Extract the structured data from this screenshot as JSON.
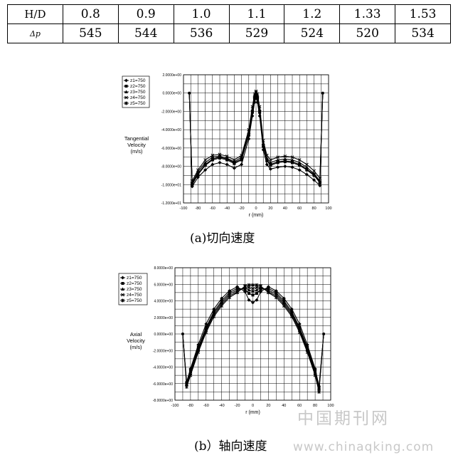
{
  "table": {
    "row1_header": "H/D",
    "row2_header": "Δp",
    "columns": [
      "0.8",
      "0.9",
      "1.0",
      "1.1",
      "1.2",
      "1.33",
      "1.53"
    ],
    "values": [
      "545",
      "544",
      "536",
      "529",
      "524",
      "520",
      "534"
    ]
  },
  "chart_data": [
    {
      "type": "line",
      "ylabel_lines": [
        "Tangential",
        "Velocity",
        "(m/s)"
      ],
      "xlabel": "r (mm)",
      "xlim": [
        -100,
        100
      ],
      "ylim": [
        -12,
        2
      ],
      "x_ticks": [
        "-100",
        "-80",
        "-60",
        "-40",
        "-20",
        "0",
        "20",
        "40",
        "60",
        "80",
        "100"
      ],
      "y_ticks": [
        "2.0000e+00",
        "0.0000e+00",
        "-2.0000e+00",
        "-4.0000e+00",
        "-6.0000e+00",
        "-8.0000e+00",
        "-1.0000e+01",
        "-1.2000e+01"
      ],
      "grid": true,
      "legend_position": "top-left",
      "legend": [
        "z1=750",
        "z2=750",
        "z3=750",
        "z4=750",
        "z5=750"
      ],
      "x": [
        -88,
        -80,
        -70,
        -60,
        -50,
        -40,
        -30,
        -20,
        -10,
        -5,
        -2,
        0,
        2,
        5,
        10,
        15,
        20,
        30,
        40,
        50,
        60,
        70,
        80,
        88
      ],
      "series": [
        {
          "name": "z1=750",
          "values": [
            -10.2,
            -9.2,
            -8.4,
            -7.8,
            -7.6,
            -7.8,
            -8.2,
            -7.8,
            -5.0,
            -2.5,
            -1.0,
            -0.2,
            -1.0,
            -2.5,
            -6.2,
            -7.8,
            -8.3,
            -8.1,
            -8.0,
            -8.1,
            -8.4,
            -8.9,
            -9.5,
            -10.1
          ]
        },
        {
          "name": "z2=750",
          "values": [
            -10.0,
            -8.9,
            -7.9,
            -7.3,
            -7.1,
            -7.3,
            -7.7,
            -7.3,
            -4.6,
            -2.1,
            -0.6,
            0.1,
            -0.6,
            -2.1,
            -5.8,
            -7.4,
            -7.9,
            -7.6,
            -7.5,
            -7.6,
            -7.9,
            -8.4,
            -9.0,
            -9.8
          ]
        },
        {
          "name": "z3=750",
          "values": [
            -9.8,
            -8.6,
            -7.6,
            -7.0,
            -6.9,
            -7.1,
            -7.5,
            -7.0,
            -4.3,
            -1.8,
            -0.3,
            0.0,
            -0.3,
            -1.8,
            -5.5,
            -7.1,
            -7.6,
            -7.3,
            -7.2,
            -7.3,
            -7.6,
            -8.1,
            -8.8,
            -9.6
          ]
        },
        {
          "name": "z4=750",
          "values": [
            -9.6,
            -8.4,
            -7.3,
            -6.8,
            -6.7,
            -6.9,
            -7.3,
            -6.8,
            -4.0,
            -1.5,
            -0.1,
            0.2,
            -0.1,
            -1.5,
            -5.2,
            -6.8,
            -7.3,
            -7.0,
            -6.9,
            -7.0,
            -7.3,
            -7.8,
            -8.5,
            -9.3
          ]
        },
        {
          "name": "z5=750",
          "values": [
            -9.9,
            -8.8,
            -7.8,
            -7.2,
            -7.0,
            -7.2,
            -7.6,
            -7.2,
            -4.5,
            -2.0,
            -0.5,
            0.0,
            -0.5,
            -2.0,
            -5.7,
            -7.3,
            -7.8,
            -7.5,
            -7.4,
            -7.5,
            -7.8,
            -8.3,
            -8.9,
            -9.7
          ]
        }
      ],
      "end_points": {
        "x": [
          -92,
          92
        ],
        "y": [
          0,
          0
        ]
      }
    },
    {
      "type": "line",
      "ylabel_lines": [
        "Axial",
        "Velocity",
        "(m/s)"
      ],
      "xlabel": "r (mm)",
      "xlim": [
        -100,
        100
      ],
      "ylim": [
        -8,
        8
      ],
      "x_ticks": [
        "-100",
        "-80",
        "-60",
        "-40",
        "-20",
        "0",
        "20",
        "40",
        "60",
        "80",
        "100"
      ],
      "y_ticks": [
        "8.0000e+00",
        "6.0000e+00",
        "4.0000e+00",
        "2.0000e+00",
        "0.0000e+00",
        "-2.0000e+00",
        "-4.0000e+00",
        "-6.0000e+00",
        "-8.0000e+00"
      ],
      "grid": true,
      "legend_position": "top-left",
      "legend": [
        "z1=750",
        "z2=750",
        "z3=750",
        "z4=750",
        "z5=750"
      ],
      "x": [
        -85,
        -80,
        -70,
        -60,
        -50,
        -40,
        -30,
        -20,
        -10,
        -5,
        0,
        5,
        10,
        20,
        30,
        40,
        50,
        60,
        70,
        80,
        85
      ],
      "series": [
        {
          "name": "z1=750",
          "values": [
            -5.8,
            -4.2,
            -1.3,
            1.2,
            3.0,
            4.3,
            5.2,
            5.7,
            5.1,
            4.1,
            3.8,
            4.1,
            5.1,
            5.7,
            5.2,
            4.3,
            3.0,
            1.2,
            -1.3,
            -4.2,
            -6.3
          ]
        },
        {
          "name": "z2=750",
          "values": [
            -6.0,
            -4.4,
            -1.6,
            0.8,
            2.7,
            4.0,
            5.0,
            5.5,
            5.4,
            4.9,
            4.7,
            4.9,
            5.4,
            5.5,
            5.0,
            4.0,
            2.7,
            0.8,
            -1.6,
            -4.4,
            -6.5
          ]
        },
        {
          "name": "z3=750",
          "values": [
            -6.1,
            -4.6,
            -1.8,
            0.6,
            2.5,
            3.8,
            4.8,
            5.3,
            5.6,
            5.3,
            5.2,
            5.3,
            5.6,
            5.3,
            4.8,
            3.8,
            2.5,
            0.6,
            -1.8,
            -4.6,
            -6.6
          ]
        },
        {
          "name": "z4=750",
          "values": [
            -6.2,
            -4.8,
            -2.0,
            0.4,
            2.3,
            3.6,
            4.6,
            5.1,
            5.7,
            5.6,
            5.5,
            5.6,
            5.7,
            5.1,
            4.6,
            3.6,
            2.3,
            0.4,
            -2.0,
            -4.8,
            -6.8
          ]
        },
        {
          "name": "z5=750",
          "values": [
            -6.4,
            -5.0,
            -2.2,
            0.2,
            2.1,
            3.4,
            4.4,
            5.0,
            5.8,
            5.9,
            5.9,
            5.9,
            5.8,
            5.0,
            4.4,
            3.4,
            2.1,
            0.2,
            -2.2,
            -5.0,
            -7.0
          ]
        }
      ],
      "end_points": {
        "x": [
          -90,
          91
        ],
        "y": [
          0,
          0
        ]
      }
    }
  ],
  "captions": {
    "chart1": "(a)切向速度",
    "chart2": "(b）轴向速度"
  },
  "watermark": {
    "cn": "中国期刊网",
    "url": "www.chinaqking.com"
  }
}
